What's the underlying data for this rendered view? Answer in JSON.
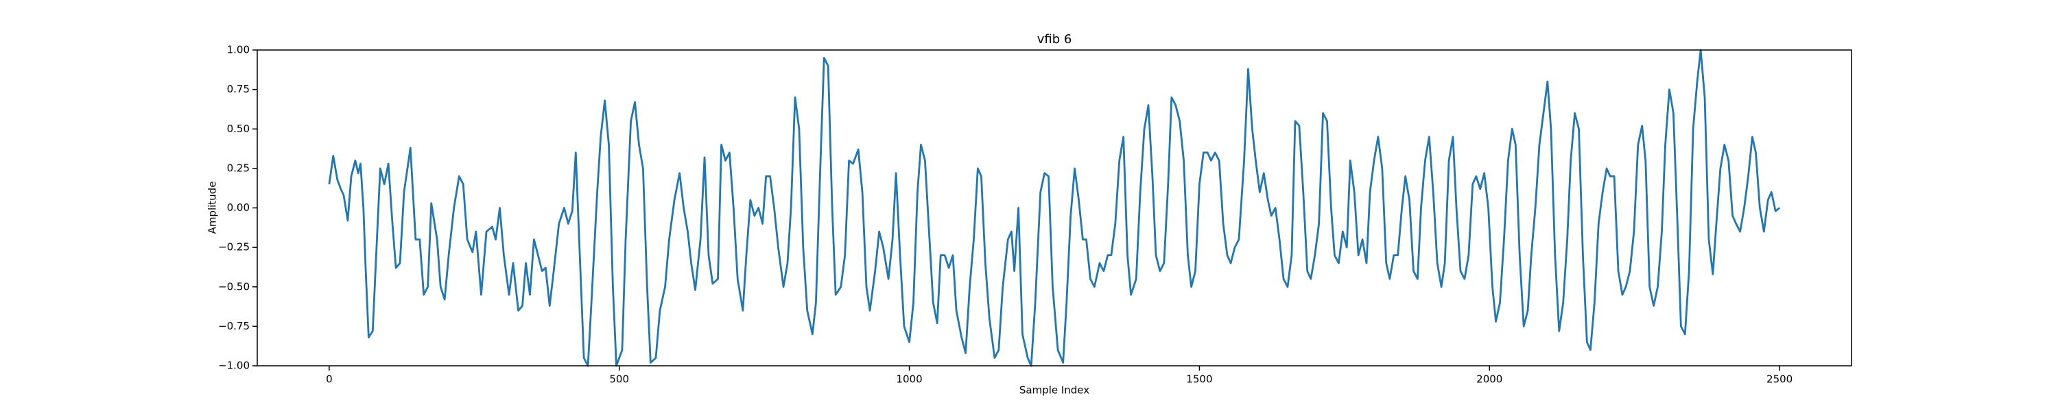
{
  "chart_data": {
    "type": "line",
    "title": "vfib 6",
    "xlabel": "Sample Index",
    "ylabel": "Amplitude",
    "color": "#1f77b4",
    "x": [
      0,
      7,
      14,
      20,
      25,
      32,
      38,
      45,
      50,
      54,
      59,
      63,
      68,
      75,
      81,
      88,
      95,
      102,
      109,
      115,
      122,
      129,
      140,
      149,
      156,
      163,
      170,
      176,
      186,
      192,
      199,
      206,
      215,
      224,
      231,
      238,
      247,
      253,
      262,
      271,
      281,
      287,
      294,
      301,
      310,
      317,
      326,
      333,
      339,
      346,
      353,
      360,
      367,
      373,
      380,
      387,
      396,
      405,
      412,
      419,
      425,
      432,
      439,
      446,
      452,
      462,
      468,
      475,
      482,
      489,
      495,
      505,
      511,
      520,
      527,
      534,
      541,
      548,
      554,
      563,
      570,
      579,
      586,
      595,
      604,
      611,
      618,
      624,
      631,
      640,
      647,
      654,
      661,
      670,
      676,
      683,
      690,
      697,
      704,
      713,
      719,
      726,
      733,
      740,
      747,
      753,
      760,
      767,
      774,
      783,
      790,
      796,
      803,
      810,
      817,
      824,
      833,
      839,
      846,
      853,
      860,
      867,
      873,
      882,
      889,
      896,
      903,
      912,
      919,
      926,
      932,
      941,
      948,
      955,
      964,
      971,
      977,
      984,
      991,
      1000,
      1007,
      1014,
      1020,
      1027,
      1034,
      1041,
      1048,
      1054,
      1061,
      1068,
      1075,
      1081,
      1090,
      1097,
      1104,
      1111,
      1118,
      1124,
      1131,
      1138,
      1147,
      1154,
      1161,
      1170,
      1176,
      1181,
      1188,
      1195,
      1204,
      1210,
      1217,
      1226,
      1233,
      1240,
      1247,
      1256,
      1265,
      1271,
      1278,
      1285,
      1292,
      1299,
      1305,
      1312,
      1319,
      1328,
      1335,
      1342,
      1348,
      1355,
      1362,
      1369,
      1376,
      1382,
      1391,
      1398,
      1405,
      1412,
      1419,
      1425,
      1432,
      1439,
      1446,
      1452,
      1459,
      1466,
      1473,
      1480,
      1486,
      1493,
      1500,
      1507,
      1514,
      1520,
      1527,
      1534,
      1541,
      1548,
      1554,
      1561,
      1568,
      1577,
      1584,
      1591,
      1597,
      1604,
      1611,
      1618,
      1624,
      1631,
      1638,
      1645,
      1652,
      1659,
      1665,
      1672,
      1679,
      1686,
      1692,
      1699,
      1706,
      1713,
      1720,
      1727,
      1733,
      1740,
      1747,
      1754,
      1760,
      1767,
      1774,
      1781,
      1788,
      1794,
      1801,
      1808,
      1815,
      1822,
      1828,
      1835,
      1842,
      1849,
      1855,
      1862,
      1869,
      1876,
      1882,
      1889,
      1896,
      1903,
      1910,
      1917,
      1923,
      1930,
      1937,
      1943,
      1950,
      1957,
      1964,
      1971,
      1977,
      1984,
      1991,
      1998,
      2005,
      2011,
      2018,
      2025,
      2032,
      2039,
      2045,
      2052,
      2059,
      2066,
      2072,
      2079,
      2086,
      2093,
      2100,
      2106,
      2113,
      2120,
      2127,
      2134,
      2140,
      2147,
      2154,
      2161,
      2168,
      2174,
      2181,
      2188,
      2195,
      2202,
      2208,
      2215,
      2222,
      2229,
      2235,
      2242,
      2249,
      2256,
      2263,
      2269,
      2276,
      2283,
      2290,
      2297,
      2303,
      2310,
      2317,
      2324,
      2330,
      2337,
      2344,
      2351,
      2358,
      2364,
      2371,
      2378,
      2385,
      2391,
      2398,
      2405,
      2412,
      2419,
      2425,
      2432,
      2439,
      2446,
      2453,
      2459,
      2466,
      2473,
      2480,
      2486,
      2493,
      2500
    ],
    "values": [
      0.15,
      0.33,
      0.18,
      0.12,
      0.08,
      -0.08,
      0.2,
      0.3,
      0.22,
      0.28,
      0.0,
      -0.4,
      -0.82,
      -0.78,
      -0.3,
      0.25,
      0.15,
      0.28,
      -0.1,
      -0.38,
      -0.35,
      0.1,
      0.38,
      -0.2,
      -0.2,
      -0.55,
      -0.5,
      0.03,
      -0.2,
      -0.5,
      -0.58,
      -0.3,
      0.0,
      0.2,
      0.15,
      -0.2,
      -0.28,
      -0.15,
      -0.55,
      -0.15,
      -0.12,
      -0.2,
      0.0,
      -0.3,
      -0.55,
      -0.35,
      -0.65,
      -0.62,
      -0.35,
      -0.55,
      -0.2,
      -0.3,
      -0.4,
      -0.38,
      -0.62,
      -0.4,
      -0.1,
      0.0,
      -0.1,
      -0.02,
      0.35,
      -0.3,
      -0.95,
      -1.0,
      -0.6,
      0.1,
      0.45,
      0.68,
      0.4,
      -0.5,
      -1.0,
      -0.9,
      -0.2,
      0.55,
      0.67,
      0.4,
      0.25,
      -0.5,
      -0.98,
      -0.95,
      -0.65,
      -0.5,
      -0.2,
      0.05,
      0.22,
      0.0,
      -0.15,
      -0.35,
      -0.52,
      -0.2,
      0.32,
      -0.3,
      -0.48,
      -0.45,
      0.4,
      0.3,
      0.35,
      0.0,
      -0.45,
      -0.65,
      -0.3,
      0.05,
      -0.05,
      0.0,
      -0.1,
      0.2,
      0.2,
      0.0,
      -0.25,
      -0.5,
      -0.35,
      0.0,
      0.7,
      0.5,
      -0.25,
      -0.65,
      -0.8,
      -0.6,
      0.2,
      0.95,
      0.9,
      0.0,
      -0.55,
      -0.5,
      -0.3,
      0.3,
      0.28,
      0.37,
      0.1,
      -0.5,
      -0.65,
      -0.4,
      -0.15,
      -0.25,
      -0.45,
      -0.2,
      0.22,
      -0.3,
      -0.75,
      -0.85,
      -0.6,
      0.1,
      0.4,
      0.3,
      -0.15,
      -0.6,
      -0.73,
      -0.3,
      -0.3,
      -0.38,
      -0.3,
      -0.65,
      -0.82,
      -0.92,
      -0.5,
      -0.2,
      0.25,
      0.2,
      -0.35,
      -0.7,
      -0.95,
      -0.9,
      -0.5,
      -0.2,
      -0.15,
      -0.4,
      0.0,
      -0.8,
      -0.95,
      -1.0,
      -0.6,
      0.1,
      0.22,
      0.2,
      -0.5,
      -0.9,
      -0.98,
      -0.6,
      -0.05,
      0.25,
      0.05,
      -0.2,
      -0.2,
      -0.45,
      -0.5,
      -0.35,
      -0.4,
      -0.3,
      -0.3,
      -0.1,
      0.3,
      0.45,
      -0.3,
      -0.55,
      -0.45,
      0.1,
      0.5,
      0.65,
      0.2,
      -0.3,
      -0.4,
      -0.35,
      0.15,
      0.7,
      0.65,
      0.55,
      0.3,
      -0.3,
      -0.5,
      -0.4,
      0.15,
      0.35,
      0.35,
      0.3,
      0.35,
      0.3,
      -0.1,
      -0.3,
      -0.35,
      -0.25,
      -0.2,
      0.3,
      0.88,
      0.5,
      0.3,
      0.1,
      0.22,
      0.05,
      -0.05,
      0.0,
      -0.2,
      -0.45,
      -0.5,
      -0.3,
      0.55,
      0.52,
      0.1,
      -0.4,
      -0.45,
      -0.3,
      -0.1,
      0.6,
      0.55,
      0.0,
      -0.3,
      -0.35,
      -0.15,
      -0.25,
      0.3,
      0.1,
      -0.3,
      -0.2,
      -0.35,
      0.1,
      0.3,
      0.45,
      0.25,
      -0.35,
      -0.45,
      -0.3,
      -0.3,
      0.0,
      0.2,
      0.05,
      -0.4,
      -0.45,
      0.0,
      0.3,
      0.45,
      0.1,
      -0.35,
      -0.5,
      -0.35,
      0.3,
      0.45,
      0.0,
      -0.4,
      -0.45,
      -0.3,
      0.15,
      0.2,
      0.12,
      0.22,
      0.0,
      -0.5,
      -0.72,
      -0.6,
      -0.2,
      0.3,
      0.5,
      0.4,
      -0.3,
      -0.75,
      -0.65,
      -0.3,
      0.0,
      0.4,
      0.6,
      0.8,
      0.5,
      -0.3,
      -0.78,
      -0.6,
      -0.2,
      0.3,
      0.6,
      0.5,
      -0.3,
      -0.85,
      -0.9,
      -0.6,
      -0.1,
      0.1,
      0.25,
      0.2,
      0.2,
      -0.4,
      -0.55,
      -0.5,
      -0.4,
      -0.15,
      0.4,
      0.52,
      0.3,
      -0.5,
      -0.62,
      -0.5,
      -0.15,
      0.4,
      0.75,
      0.6,
      -0.1,
      -0.75,
      -0.8,
      -0.4,
      0.5,
      0.8,
      1.0,
      0.7,
      -0.2,
      -0.42,
      -0.1,
      0.25,
      0.4,
      0.3,
      -0.05,
      -0.1,
      -0.15,
      0.0,
      0.2,
      0.45,
      0.35,
      0.0,
      -0.15,
      0.05,
      0.1,
      -0.02,
      0.0
    ],
    "xlim": [
      -124,
      2624
    ],
    "xticks": [
      0,
      500,
      1000,
      1500,
      2000,
      2500
    ],
    "ylim": [
      -1,
      1
    ],
    "yticks": [
      {
        "value": -1,
        "label": "−1.00"
      },
      {
        "value": -0.75,
        "label": "−0.75"
      },
      {
        "value": -0.5,
        "label": "−0.50"
      },
      {
        "value": -0.25,
        "label": "−0.25"
      },
      {
        "value": 0,
        "label": "0.00"
      },
      {
        "value": 0.25,
        "label": "0.25"
      },
      {
        "value": 0.5,
        "label": "0.50"
      },
      {
        "value": 0.75,
        "label": "0.75"
      },
      {
        "value": 1,
        "label": "1.00"
      }
    ]
  }
}
